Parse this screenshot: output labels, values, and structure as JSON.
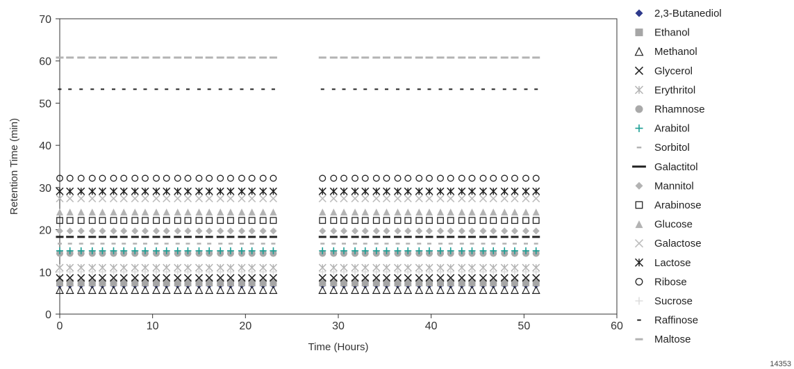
{
  "figure_id": "14353",
  "chart_data": {
    "type": "scatter",
    "title": "",
    "xlabel": "Time (Hours)",
    "ylabel": "Retention Time (min)",
    "xlim": [
      0,
      60
    ],
    "ylim": [
      0,
      70
    ],
    "xticks": [
      0,
      10,
      20,
      30,
      40,
      50,
      60
    ],
    "yticks": [
      0,
      10,
      20,
      30,
      40,
      50,
      60,
      70
    ],
    "grid": false,
    "legend_position": "right",
    "x": [
      0,
      1.1,
      2.3,
      3.5,
      4.6,
      5.8,
      6.9,
      8.1,
      9.2,
      10.4,
      11.5,
      12.7,
      13.8,
      15.0,
      16.1,
      17.3,
      18.4,
      19.6,
      20.7,
      21.9,
      23.0,
      28.3,
      29.5,
      30.6,
      31.8,
      32.9,
      34.1,
      35.2,
      36.4,
      37.5,
      38.7,
      39.8,
      41.0,
      42.1,
      43.3,
      44.4,
      45.6,
      46.7,
      47.9,
      49.0,
      50.2,
      51.3
    ],
    "series": [
      {
        "name": "2,3-Butanediol",
        "marker": "diamond",
        "color": "#2e3a8c",
        "value": 6.9
      },
      {
        "name": "Ethanol",
        "marker": "square",
        "color": "#a6a6a6",
        "value": 7.4
      },
      {
        "name": "Methanol",
        "marker": "triangle-open",
        "color": "#222222",
        "value": 5.7
      },
      {
        "name": "Glycerol",
        "marker": "x",
        "color": "#222222",
        "value": 8.6
      },
      {
        "name": "Erythritol",
        "marker": "asterisk",
        "color": "#b3b3b3",
        "value": 11.0
      },
      {
        "name": "Rhamnose",
        "marker": "circle",
        "color": "#a9a9a9",
        "value": 14.4
      },
      {
        "name": "Arabitol",
        "marker": "plus",
        "color": "#1a9e94",
        "value": 15.0
      },
      {
        "name": "Sorbitol",
        "marker": "dash-small",
        "color": "#b3b3b3",
        "value": 16.7
      },
      {
        "name": "Galactitol",
        "marker": "bar",
        "color": "#222222",
        "value": 18.3
      },
      {
        "name": "Mannitol",
        "marker": "diamond",
        "color": "#b3b3b3",
        "value": 19.7
      },
      {
        "name": "Arabinose",
        "marker": "square-open",
        "color": "#222222",
        "value": 22.2
      },
      {
        "name": "Glucose",
        "marker": "triangle",
        "color": "#b3b3b3",
        "value": 24.2
      },
      {
        "name": "Galactose",
        "marker": "x",
        "color": "#bdbdbd",
        "value": 27.4
      },
      {
        "name": "Lactose",
        "marker": "asterisk",
        "color": "#222222",
        "value": 29.1
      },
      {
        "name": "Ribose",
        "marker": "circle-open",
        "color": "#222222",
        "value": 32.2
      },
      {
        "name": "Sucrose",
        "marker": "plus",
        "color": "#dddddd",
        "value": 10.0
      },
      {
        "name": "Raffinose",
        "marker": "dash",
        "color": "#222222",
        "value": 53.3
      },
      {
        "name": "Maltose",
        "marker": "dash-long",
        "color": "#b3b3b3",
        "value": 60.8
      }
    ]
  }
}
